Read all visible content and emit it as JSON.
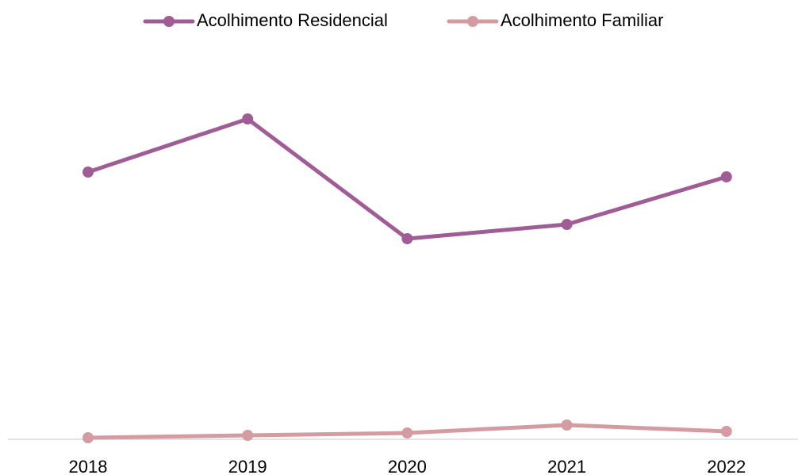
{
  "chart_data": {
    "type": "line",
    "categories": [
      "2018",
      "2019",
      "2020",
      "2021",
      "2022"
    ],
    "series": [
      {
        "name": "Acolhimento Residencial",
        "color": "#a05c94",
        "values": [
          6740,
          8080,
          5060,
          5420,
          6620
        ]
      },
      {
        "name": "Acolhimento Familiar",
        "color": "#d49ca2",
        "values": [
          40,
          100,
          160,
          360,
          200
        ]
      }
    ],
    "ylim": [
      0,
      11000
    ],
    "legend": "top"
  }
}
